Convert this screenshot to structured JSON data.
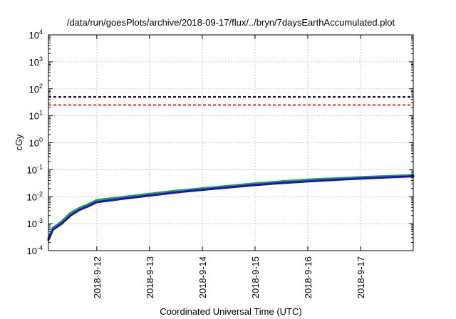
{
  "chart_data": {
    "type": "line",
    "title": "/data/run/goesPlots/archive/2018-09-17/flux/../bryn/7daysEarthAccumulated.plot",
    "xlabel": "Coordinated Universal Time (UTC)",
    "ylabel": "cGy",
    "yscale": "log",
    "ylim": [
      0.0001,
      10000
    ],
    "xlim": [
      "2018-09-11 02:00",
      "2018-09-17 23:59"
    ],
    "grid": true,
    "y_ticks": [
      {
        "base": "10",
        "exp": "-4",
        "value": 0.0001
      },
      {
        "base": "10",
        "exp": "-3",
        "value": 0.001
      },
      {
        "base": "10",
        "exp": "-2",
        "value": 0.01
      },
      {
        "base": "10",
        "exp": "-1",
        "value": 0.1
      },
      {
        "base": "10",
        "exp": "0",
        "value": 1
      },
      {
        "base": "10",
        "exp": "1",
        "value": 10
      },
      {
        "base": "10",
        "exp": "2",
        "value": 100
      },
      {
        "base": "10",
        "exp": "3",
        "value": 1000
      },
      {
        "base": "10",
        "exp": "4",
        "value": 10000
      }
    ],
    "x_ticks": [
      "2018-9-12",
      "2018-9-13",
      "2018-9-14",
      "2018-9-15",
      "2018-9-16",
      "2018-9-17"
    ],
    "x": [
      "2018-09-11 02:00",
      "2018-09-11 04:00",
      "2018-09-11 08:00",
      "2018-09-11 12:00",
      "2018-09-11 16:00",
      "2018-09-11 20:00",
      "2018-09-12 00:00",
      "2018-09-12 12:00",
      "2018-09-13 00:00",
      "2018-09-13 12:00",
      "2018-09-14 00:00",
      "2018-09-14 12:00",
      "2018-09-15 00:00",
      "2018-09-15 12:00",
      "2018-09-16 00:00",
      "2018-09-16 12:00",
      "2018-09-17 00:00",
      "2018-09-17 12:00",
      "2018-09-17 23:59"
    ],
    "series": [
      {
        "color": "#2ca02c",
        "values": [
          0.0003,
          0.0007,
          0.0012,
          0.0025,
          0.0038,
          0.0052,
          0.0075,
          0.0098,
          0.0128,
          0.0165,
          0.0205,
          0.025,
          0.031,
          0.037,
          0.043,
          0.048,
          0.053,
          0.058,
          0.063
        ]
      },
      {
        "color": "#1010e0",
        "values": [
          0.00025,
          0.0006,
          0.001,
          0.002,
          0.0032,
          0.0044,
          0.0063,
          0.0084,
          0.011,
          0.0144,
          0.018,
          0.022,
          0.027,
          0.032,
          0.037,
          0.042,
          0.047,
          0.052,
          0.057
        ]
      }
    ],
    "reference_lines": [
      {
        "value": 50,
        "color": "#000000",
        "style": "dashed"
      },
      {
        "value": 25,
        "color": "#e8281c",
        "style": "dashed"
      }
    ]
  }
}
